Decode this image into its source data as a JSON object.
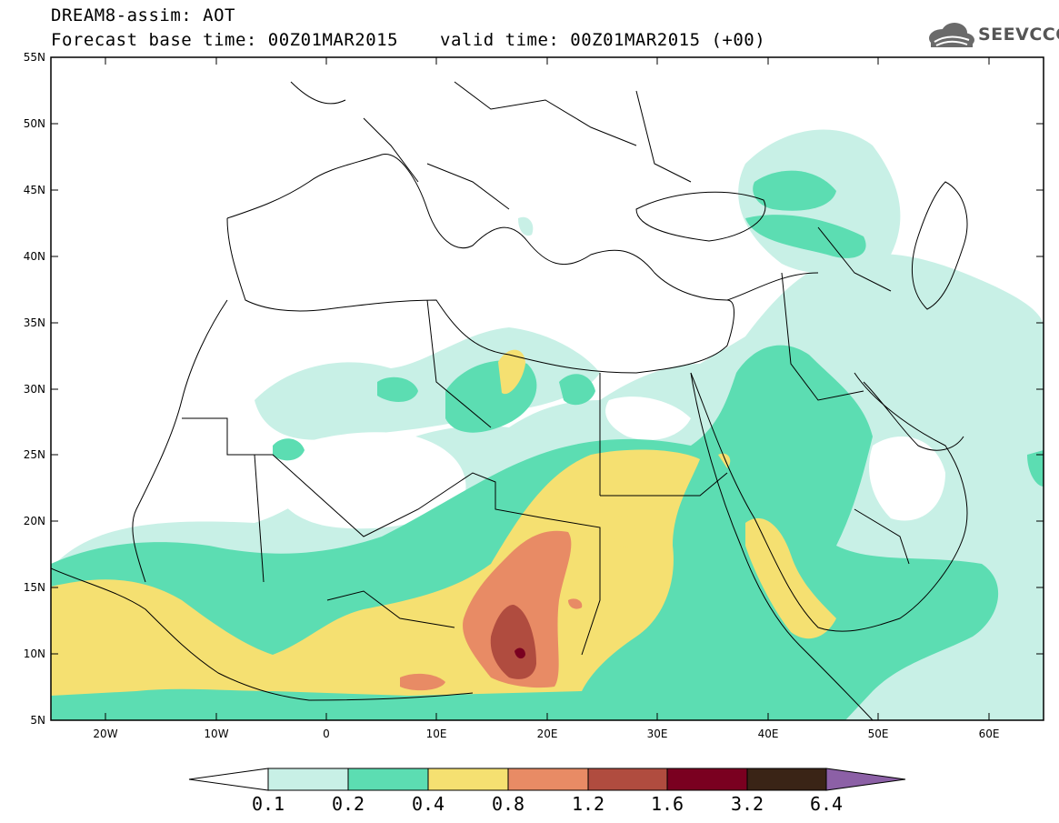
{
  "title": {
    "line1": "DREAM8-assim: AOT",
    "line2_base": "Forecast base time: 00Z01MAR2015",
    "line2_valid": "valid time: 00Z01MAR2015 (+00)"
  },
  "logo": {
    "text": "SEEVCCC",
    "icon": "cloud-logo-icon"
  },
  "map": {
    "lat_labels": [
      "55N",
      "50N",
      "45N",
      "40N",
      "35N",
      "30N",
      "25N",
      "20N",
      "15N",
      "10N",
      "5N"
    ],
    "lon_labels": [
      "20W",
      "10W",
      "0",
      "10E",
      "20E",
      "30E",
      "40E",
      "50E",
      "60E"
    ],
    "extent": {
      "lon_min": -25,
      "lon_max": 65,
      "lat_min": 5,
      "lat_max": 55
    }
  },
  "colorbar": {
    "labels": [
      "0.1",
      "0.2",
      "0.4",
      "0.8",
      "1.2",
      "1.6",
      "3.2",
      "6.4"
    ],
    "colors": [
      "#ffffff",
      "#c8f0e6",
      "#5cddb2",
      "#f5e071",
      "#e88b65",
      "#b04c3f",
      "#7a0020",
      "#3a2416",
      "#8c60a6"
    ]
  }
}
